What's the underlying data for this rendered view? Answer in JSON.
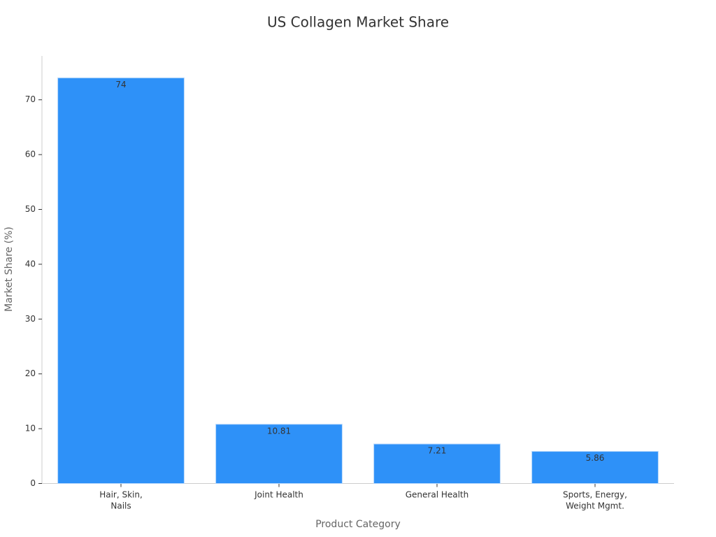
{
  "chart_data": {
    "type": "bar",
    "title": "US Collagen Market Share",
    "x_label": "Product Category",
    "y_label": "Market Share (%)",
    "categories": [
      "Hair, Skin,\nNails",
      "Joint Health",
      "General Health",
      "Sports, Energy,\nWeight Mgmt."
    ],
    "values": [
      74,
      10.81,
      7.21,
      5.86
    ],
    "color": "#2e91f8",
    "ylim": [
      0,
      78
    ],
    "yticks": [
      0,
      10,
      20,
      30,
      40,
      50,
      60,
      70
    ],
    "grid": false
  }
}
